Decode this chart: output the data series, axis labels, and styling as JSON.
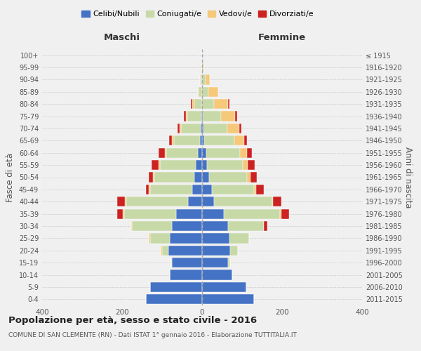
{
  "age_groups": [
    "0-4",
    "5-9",
    "10-14",
    "15-19",
    "20-24",
    "25-29",
    "30-34",
    "35-39",
    "40-44",
    "45-49",
    "50-54",
    "55-59",
    "60-64",
    "65-69",
    "70-74",
    "75-79",
    "80-84",
    "85-89",
    "90-94",
    "95-99",
    "100+"
  ],
  "birth_years": [
    "2011-2015",
    "2006-2010",
    "2001-2005",
    "1996-2000",
    "1991-1995",
    "1986-1990",
    "1981-1985",
    "1976-1980",
    "1971-1975",
    "1966-1970",
    "1961-1965",
    "1956-1960",
    "1951-1955",
    "1946-1950",
    "1941-1945",
    "1936-1940",
    "1931-1935",
    "1926-1930",
    "1921-1925",
    "1916-1920",
    "≤ 1915"
  ],
  "male": {
    "celibi": [
      140,
      130,
      80,
      75,
      85,
      80,
      75,
      65,
      35,
      25,
      20,
      15,
      10,
      5,
      3,
      2,
      0,
      0,
      0,
      0,
      0
    ],
    "coniugati": [
      0,
      0,
      0,
      3,
      15,
      50,
      100,
      130,
      155,
      105,
      100,
      90,
      80,
      65,
      50,
      35,
      20,
      8,
      3,
      0,
      0
    ],
    "vedovi": [
      0,
      0,
      0,
      0,
      3,
      3,
      3,
      3,
      3,
      3,
      3,
      3,
      3,
      5,
      3,
      3,
      5,
      3,
      3,
      0,
      0
    ],
    "divorziati": [
      0,
      0,
      0,
      0,
      0,
      0,
      0,
      15,
      20,
      8,
      10,
      18,
      15,
      8,
      5,
      5,
      3,
      0,
      0,
      0,
      0
    ]
  },
  "female": {
    "celibi": [
      130,
      110,
      75,
      65,
      70,
      68,
      65,
      55,
      30,
      25,
      18,
      12,
      10,
      5,
      3,
      2,
      0,
      0,
      0,
      0,
      0
    ],
    "coniugati": [
      0,
      0,
      0,
      5,
      20,
      50,
      90,
      140,
      145,
      105,
      95,
      90,
      85,
      75,
      60,
      45,
      30,
      15,
      8,
      3,
      0
    ],
    "vedovi": [
      0,
      0,
      0,
      0,
      0,
      0,
      0,
      3,
      3,
      5,
      8,
      12,
      18,
      25,
      30,
      35,
      35,
      25,
      12,
      3,
      0
    ],
    "divorziati": [
      0,
      0,
      0,
      0,
      0,
      0,
      8,
      20,
      20,
      20,
      15,
      18,
      12,
      8,
      5,
      5,
      3,
      0,
      0,
      0,
      0
    ]
  },
  "colors": {
    "celibi": "#4472c4",
    "coniugati": "#c8d9a8",
    "vedovi": "#f5c87a",
    "divorziati": "#cc2222"
  },
  "xlim": 400,
  "title": "Popolazione per età, sesso e stato civile - 2016",
  "subtitle": "COMUNE DI SAN CLEMENTE (RN) - Dati ISTAT 1° gennaio 2016 - Elaborazione TUTTITALIA.IT",
  "ylabel_left": "Fasce di età",
  "ylabel_right": "Anni di nascita",
  "xlabel_left": "Maschi",
  "xlabel_right": "Femmine",
  "background_color": "#f0f0f0",
  "grid_color": "#cccccc"
}
